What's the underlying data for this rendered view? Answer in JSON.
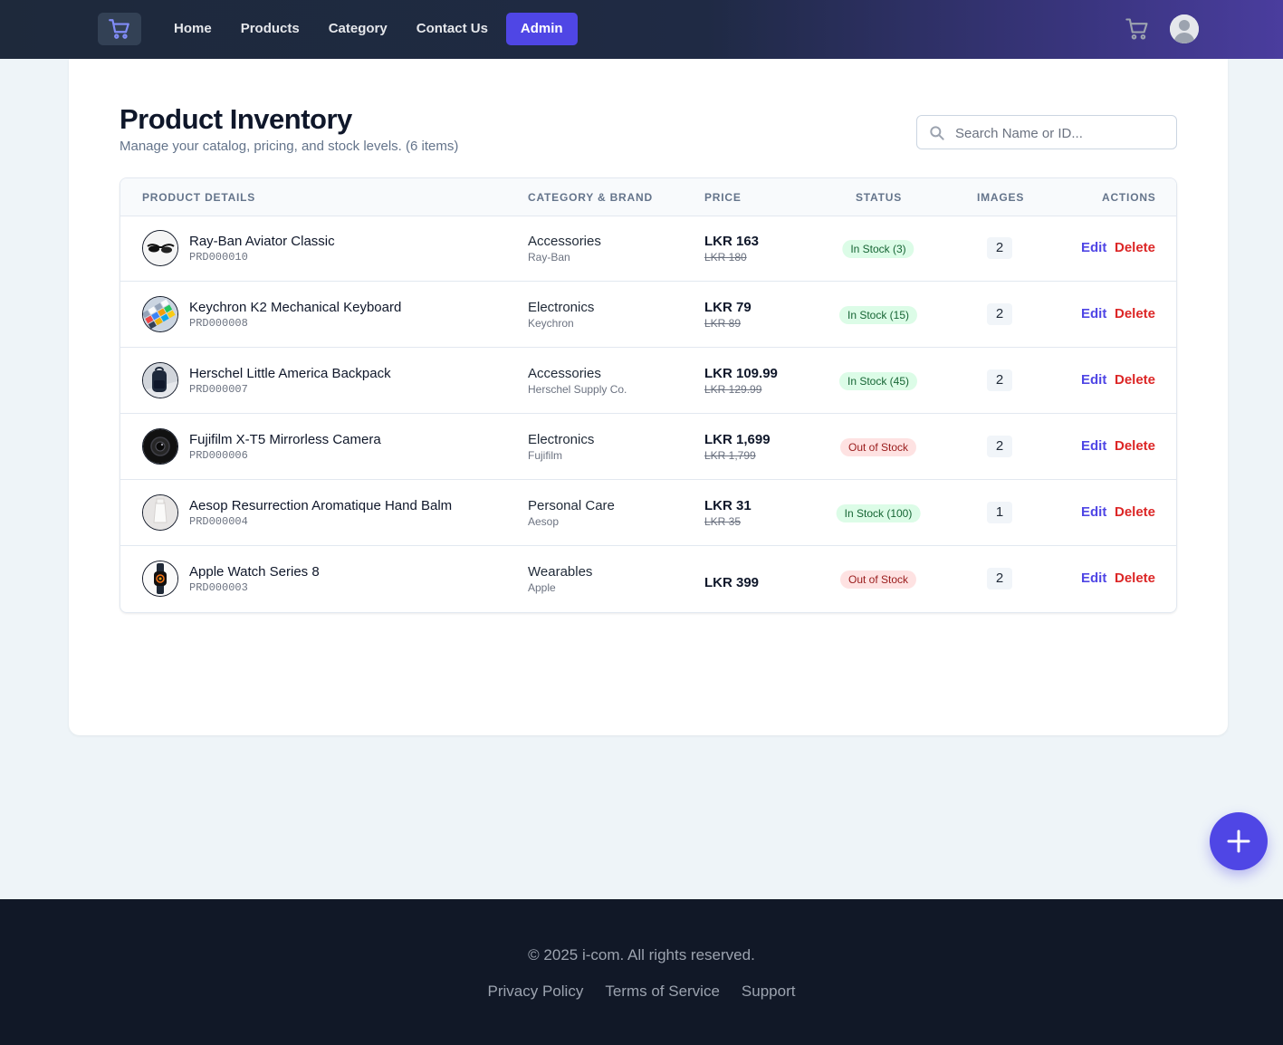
{
  "navbar": {
    "logo_icon": "shopping-cart-icon",
    "links": [
      {
        "label": "Home"
      },
      {
        "label": "Products"
      },
      {
        "label": "Category"
      },
      {
        "label": "Contact Us"
      },
      {
        "label": "Admin",
        "active": true
      }
    ],
    "cart_icon": "shopping-cart-icon",
    "avatar_icon": "user-avatar-icon"
  },
  "page": {
    "title": "Product Inventory",
    "subtitle": "Manage your catalog, pricing, and stock levels. (6 items)"
  },
  "search": {
    "placeholder": "Search Name or ID...",
    "value": ""
  },
  "table": {
    "headers": {
      "product": "PRODUCT DETAILS",
      "category": "CATEGORY & BRAND",
      "price": "PRICE",
      "status": "STATUS",
      "images": "IMAGES",
      "actions": "ACTIONS"
    },
    "edit_label": "Edit",
    "delete_label": "Delete",
    "rows": [
      {
        "name": "Ray-Ban Aviator Classic",
        "id": "PRD000010",
        "category": "Accessories",
        "brand": "Ray-Ban",
        "price": "LKR 163",
        "old_price": "LKR 180",
        "status": "In Stock (3)",
        "in_stock": true,
        "images": "2",
        "thumb": "sunglasses"
      },
      {
        "name": "Keychron K2 Mechanical Keyboard",
        "id": "PRD000008",
        "category": "Electronics",
        "brand": "Keychron",
        "price": "LKR 79",
        "old_price": "LKR 89",
        "status": "In Stock (15)",
        "in_stock": true,
        "images": "2",
        "thumb": "keyboard"
      },
      {
        "name": "Herschel Little America Backpack",
        "id": "PRD000007",
        "category": "Accessories",
        "brand": "Herschel Supply Co.",
        "price": "LKR 109.99",
        "old_price": "LKR 129.99",
        "status": "In Stock (45)",
        "in_stock": true,
        "images": "2",
        "thumb": "backpack"
      },
      {
        "name": "Fujifilm X-T5 Mirrorless Camera",
        "id": "PRD000006",
        "category": "Electronics",
        "brand": "Fujifilm",
        "price": "LKR 1,699",
        "old_price": "LKR 1,799",
        "status": "Out of Stock",
        "in_stock": false,
        "images": "2",
        "thumb": "camera"
      },
      {
        "name": "Aesop Resurrection Aromatique Hand Balm",
        "id": "PRD000004",
        "category": "Personal Care",
        "brand": "Aesop",
        "price": "LKR 31",
        "old_price": "LKR 35",
        "status": "In Stock (100)",
        "in_stock": true,
        "images": "1",
        "thumb": "balm"
      },
      {
        "name": "Apple Watch Series 8",
        "id": "PRD000003",
        "category": "Wearables",
        "brand": "Apple",
        "price": "LKR 399",
        "old_price": "",
        "status": "Out of Stock",
        "in_stock": false,
        "images": "2",
        "thumb": "watch"
      }
    ]
  },
  "fab": {
    "icon": "plus-icon"
  },
  "footer": {
    "copyright": "© 2025 i-com. All rights reserved.",
    "links": [
      {
        "label": "Privacy Policy"
      },
      {
        "label": "Terms of Service"
      },
      {
        "label": "Support"
      }
    ]
  },
  "colors": {
    "accent": "#4f46e5",
    "danger": "#dc2626",
    "in_stock_bg": "#dcfce7",
    "out_stock_bg": "#fee2e2",
    "footer_bg": "#111827"
  }
}
